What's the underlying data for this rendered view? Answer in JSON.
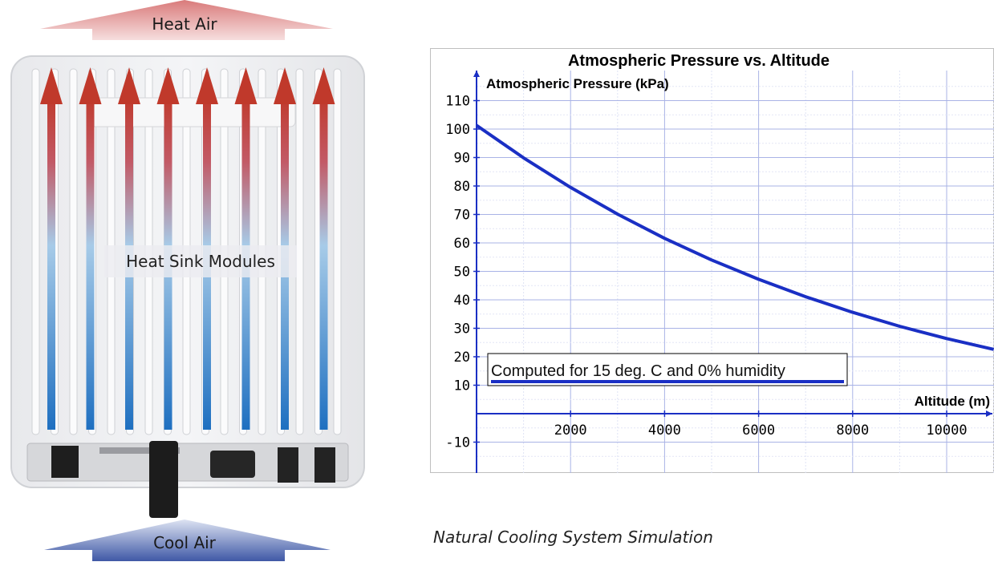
{
  "heat_sink_diagram": {
    "top_arrow_label": "Heat Air",
    "bottom_arrow_label": "Cool Air",
    "center_label": "Heat Sink Modules",
    "arrow_count": 8,
    "colors": {
      "hot": "#c0392b",
      "cool": "#1e6fc0"
    }
  },
  "chart_data": {
    "type": "line",
    "title": "Atmospheric Pressure vs. Altitude",
    "xlabel": "Altitude (m)",
    "ylabel": "Atmospheric Pressure (kPa)",
    "xlim": [
      0,
      11000
    ],
    "ylim": [
      -20,
      120
    ],
    "x_ticks": [
      2000,
      4000,
      6000,
      8000,
      10000
    ],
    "y_ticks": [
      -10,
      10,
      20,
      30,
      40,
      50,
      60,
      70,
      80,
      90,
      100,
      110
    ],
    "grid": true,
    "series": [
      {
        "color": "#1a2fc4",
        "x": [
          0,
          1000,
          2000,
          3000,
          4000,
          5000,
          6000,
          7000,
          8000,
          9000,
          10000,
          11000
        ],
        "y": [
          101.3,
          89.9,
          79.5,
          70.1,
          61.6,
          54.0,
          47.2,
          41.1,
          35.6,
          30.7,
          26.4,
          22.6
        ]
      }
    ],
    "annotation": "Computed for 15 deg. C and 0% humidity"
  },
  "caption": "Natural Cooling System Simulation"
}
